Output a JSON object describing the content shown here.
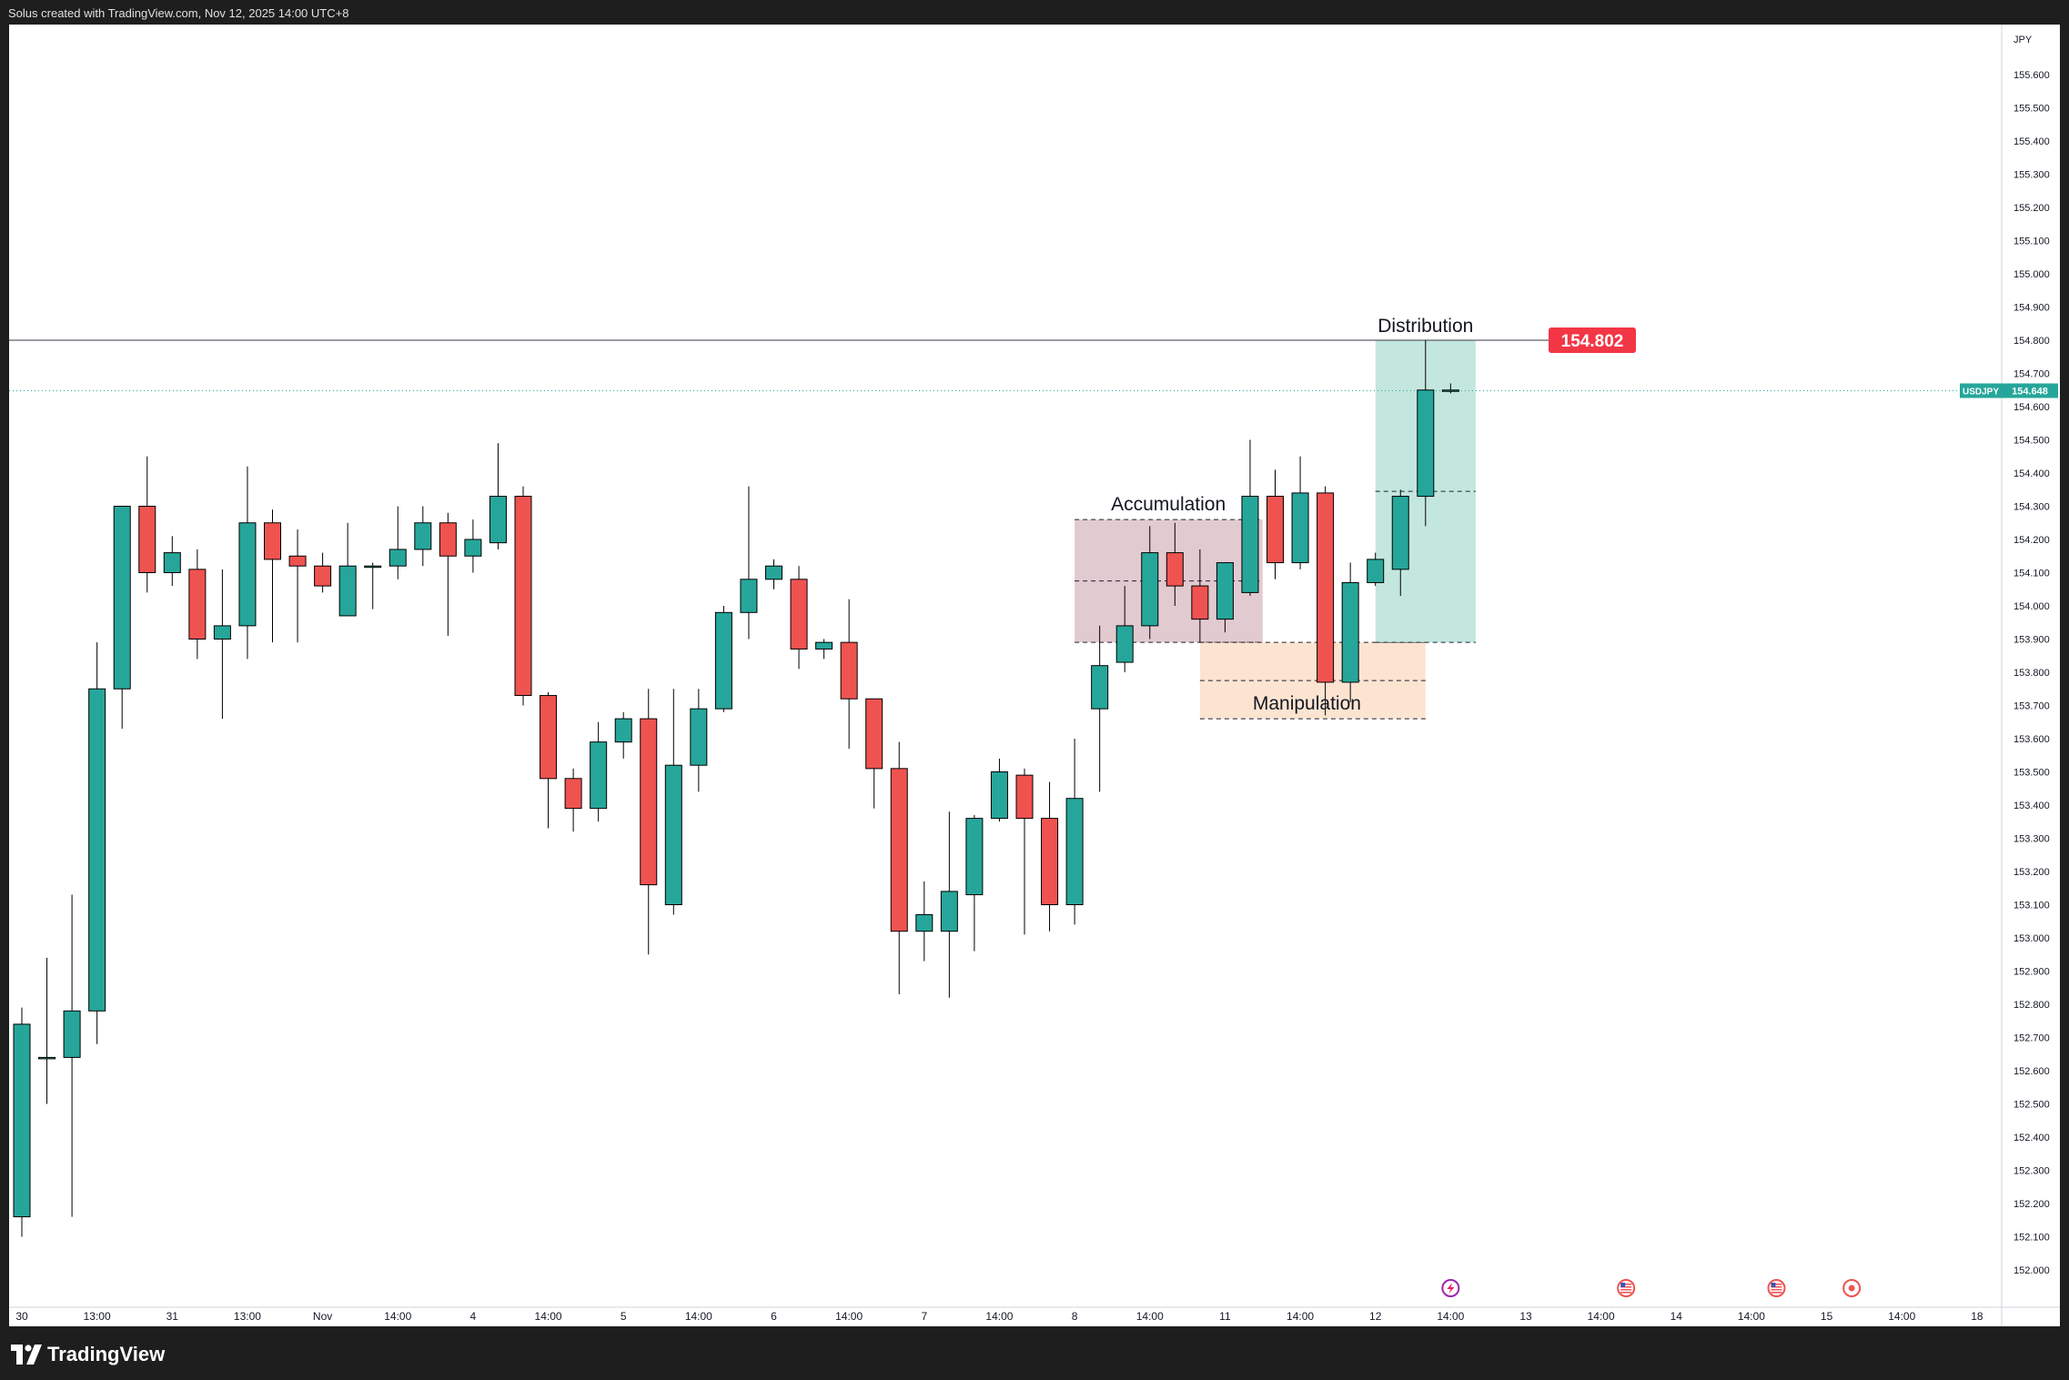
{
  "header": {
    "caption": "Solus created with TradingView.com, Nov 12, 2025 14:00 UTC+8"
  },
  "footer": {
    "brand": "TradingView"
  },
  "colors": {
    "up": "#26a69a",
    "down": "#ef5350",
    "wick": "#000000",
    "accumulation_zone": "#d7b8c0",
    "manipulation_zone": "#fbd9bd",
    "distribution_zone": "#b8e3d8",
    "price_badge": "#f23645",
    "symbol_badge": "#26a69a"
  },
  "chart_data": {
    "type": "candlestick",
    "symbol": "USDJPY",
    "currency": "JPY",
    "ylim": [
      151.96,
      155.87
    ],
    "y_ticks": [
      "155.600",
      "155.500",
      "155.400",
      "155.300",
      "155.200",
      "155.100",
      "155.000",
      "154.900",
      "154.800",
      "154.700",
      "154.600",
      "154.500",
      "154.400",
      "154.300",
      "154.200",
      "154.100",
      "154.000",
      "153.900",
      "153.800",
      "153.700",
      "153.600",
      "153.500",
      "153.400",
      "153.300",
      "153.200",
      "153.100",
      "153.000",
      "152.900",
      "152.800",
      "152.700",
      "152.600",
      "152.500",
      "152.400",
      "152.300",
      "152.200",
      "152.100",
      "152.000"
    ],
    "x_ticks": [
      {
        "i": 0,
        "label": "30"
      },
      {
        "i": 3,
        "label": "13:00"
      },
      {
        "i": 6,
        "label": "31"
      },
      {
        "i": 9,
        "label": "13:00"
      },
      {
        "i": 12,
        "label": "Nov"
      },
      {
        "i": 15,
        "label": "14:00"
      },
      {
        "i": 18,
        "label": "4"
      },
      {
        "i": 21,
        "label": "14:00"
      },
      {
        "i": 24,
        "label": "5"
      },
      {
        "i": 27,
        "label": "14:00"
      },
      {
        "i": 30,
        "label": "6"
      },
      {
        "i": 33,
        "label": "14:00"
      },
      {
        "i": 36,
        "label": "7"
      },
      {
        "i": 39,
        "label": "14:00"
      },
      {
        "i": 42,
        "label": "8"
      },
      {
        "i": 45,
        "label": "14:00"
      },
      {
        "i": 48,
        "label": "11"
      },
      {
        "i": 51,
        "label": "14:00"
      },
      {
        "i": 54,
        "label": "12"
      },
      {
        "i": 57,
        "label": "14:00"
      },
      {
        "i": 60,
        "label": "13"
      },
      {
        "i": 63,
        "label": "14:00"
      },
      {
        "i": 66,
        "label": "14"
      },
      {
        "i": 69,
        "label": "14:00"
      },
      {
        "i": 72,
        "label": "15"
      },
      {
        "i": 75,
        "label": "14:00"
      },
      {
        "i": 78,
        "label": "18"
      }
    ],
    "candles": [
      {
        "o": 152.16,
        "h": 152.79,
        "l": 152.1,
        "c": 152.74
      },
      {
        "o": 152.64,
        "h": 152.94,
        "l": 152.5,
        "c": 152.64
      },
      {
        "o": 152.64,
        "h": 153.13,
        "l": 152.16,
        "c": 152.78
      },
      {
        "o": 152.78,
        "h": 153.89,
        "l": 152.68,
        "c": 153.75
      },
      {
        "o": 153.75,
        "h": 154.3,
        "l": 153.63,
        "c": 154.3
      },
      {
        "o": 154.3,
        "h": 154.45,
        "l": 154.04,
        "c": 154.1
      },
      {
        "o": 154.1,
        "h": 154.21,
        "l": 154.06,
        "c": 154.16
      },
      {
        "o": 154.11,
        "h": 154.17,
        "l": 153.84,
        "c": 153.9
      },
      {
        "o": 153.9,
        "h": 154.11,
        "l": 153.66,
        "c": 153.94
      },
      {
        "o": 153.94,
        "h": 154.42,
        "l": 153.84,
        "c": 154.25
      },
      {
        "o": 154.25,
        "h": 154.29,
        "l": 153.89,
        "c": 154.14
      },
      {
        "o": 154.15,
        "h": 154.23,
        "l": 153.89,
        "c": 154.12
      },
      {
        "o": 154.12,
        "h": 154.16,
        "l": 154.04,
        "c": 154.06
      },
      {
        "o": 153.97,
        "h": 154.25,
        "l": 153.97,
        "c": 154.12
      },
      {
        "o": 154.12,
        "h": 154.13,
        "l": 153.99,
        "c": 154.12
      },
      {
        "o": 154.12,
        "h": 154.3,
        "l": 154.08,
        "c": 154.17
      },
      {
        "o": 154.17,
        "h": 154.3,
        "l": 154.12,
        "c": 154.25
      },
      {
        "o": 154.25,
        "h": 154.28,
        "l": 153.91,
        "c": 154.15
      },
      {
        "o": 154.15,
        "h": 154.26,
        "l": 154.1,
        "c": 154.2
      },
      {
        "o": 154.19,
        "h": 154.49,
        "l": 154.17,
        "c": 154.33
      },
      {
        "o": 154.33,
        "h": 154.36,
        "l": 153.7,
        "c": 153.73
      },
      {
        "o": 153.73,
        "h": 153.74,
        "l": 153.33,
        "c": 153.48
      },
      {
        "o": 153.48,
        "h": 153.51,
        "l": 153.32,
        "c": 153.39
      },
      {
        "o": 153.39,
        "h": 153.65,
        "l": 153.35,
        "c": 153.59
      },
      {
        "o": 153.59,
        "h": 153.68,
        "l": 153.54,
        "c": 153.66
      },
      {
        "o": 153.66,
        "h": 153.75,
        "l": 152.95,
        "c": 153.16
      },
      {
        "o": 153.1,
        "h": 153.75,
        "l": 153.07,
        "c": 153.52
      },
      {
        "o": 153.52,
        "h": 153.75,
        "l": 153.44,
        "c": 153.69
      },
      {
        "o": 153.69,
        "h": 154.0,
        "l": 153.68,
        "c": 153.98
      },
      {
        "o": 153.98,
        "h": 154.36,
        "l": 153.9,
        "c": 154.08
      },
      {
        "o": 154.08,
        "h": 154.14,
        "l": 154.05,
        "c": 154.12
      },
      {
        "o": 154.08,
        "h": 154.12,
        "l": 153.81,
        "c": 153.87
      },
      {
        "o": 153.87,
        "h": 153.9,
        "l": 153.84,
        "c": 153.89
      },
      {
        "o": 153.89,
        "h": 154.02,
        "l": 153.57,
        "c": 153.72
      },
      {
        "o": 153.72,
        "h": 153.72,
        "l": 153.39,
        "c": 153.51
      },
      {
        "o": 153.51,
        "h": 153.59,
        "l": 152.83,
        "c": 153.02
      },
      {
        "o": 153.02,
        "h": 153.17,
        "l": 152.93,
        "c": 153.07
      },
      {
        "o": 153.02,
        "h": 153.38,
        "l": 152.82,
        "c": 153.14
      },
      {
        "o": 153.13,
        "h": 153.37,
        "l": 152.96,
        "c": 153.36
      },
      {
        "o": 153.36,
        "h": 153.54,
        "l": 153.35,
        "c": 153.5
      },
      {
        "o": 153.49,
        "h": 153.51,
        "l": 153.01,
        "c": 153.36
      },
      {
        "o": 153.36,
        "h": 153.47,
        "l": 153.02,
        "c": 153.1
      },
      {
        "o": 153.1,
        "h": 153.6,
        "l": 153.04,
        "c": 153.42
      },
      {
        "o": 153.69,
        "h": 153.94,
        "l": 153.44,
        "c": 153.82
      },
      {
        "o": 153.83,
        "h": 154.06,
        "l": 153.8,
        "c": 153.94
      },
      {
        "o": 153.94,
        "h": 154.24,
        "l": 153.9,
        "c": 154.16
      },
      {
        "o": 154.16,
        "h": 154.25,
        "l": 154.0,
        "c": 154.06
      },
      {
        "o": 154.06,
        "h": 154.17,
        "l": 153.89,
        "c": 153.96
      },
      {
        "o": 153.96,
        "h": 154.13,
        "l": 153.92,
        "c": 154.13
      },
      {
        "o": 154.04,
        "h": 154.5,
        "l": 154.03,
        "c": 154.33
      },
      {
        "o": 154.33,
        "h": 154.41,
        "l": 154.08,
        "c": 154.13
      },
      {
        "o": 154.13,
        "h": 154.45,
        "l": 154.11,
        "c": 154.34
      },
      {
        "o": 154.34,
        "h": 154.36,
        "l": 153.67,
        "c": 153.77
      },
      {
        "o": 153.77,
        "h": 154.13,
        "l": 153.71,
        "c": 154.07
      },
      {
        "o": 154.07,
        "h": 154.16,
        "l": 154.06,
        "c": 154.14
      },
      {
        "o": 154.11,
        "h": 154.35,
        "l": 154.03,
        "c": 154.33
      },
      {
        "o": 154.33,
        "h": 154.8,
        "l": 154.24,
        "c": 154.65
      },
      {
        "o": 154.65,
        "h": 154.67,
        "l": 154.64,
        "c": 154.65
      }
    ],
    "zones": [
      {
        "name": "accumulation",
        "label": "Accumulation",
        "i0": 42.0,
        "i1": 49.5,
        "y0": 153.89,
        "y1": 154.26
      },
      {
        "name": "manipulation",
        "label": "Manipulation",
        "i0": 47.0,
        "i1": 56.0,
        "y0": 153.66,
        "y1": 153.89
      },
      {
        "name": "distribution",
        "label": "Distribution",
        "i0": 54.0,
        "i1": 58.0,
        "y0": 153.89,
        "y1": 154.8
      }
    ],
    "horizontal_line": {
      "price": 154.8,
      "label": "154.802"
    },
    "last_price": {
      "price": 154.648,
      "symbol": "USDJPY",
      "label": "154.648"
    },
    "event_markers": [
      {
        "i": 57,
        "icon": "lightning-icon"
      },
      {
        "i": 64,
        "icon": "us-flag-icon"
      },
      {
        "i": 70,
        "icon": "us-flag-icon"
      },
      {
        "i": 73,
        "icon": "target-icon"
      }
    ]
  }
}
